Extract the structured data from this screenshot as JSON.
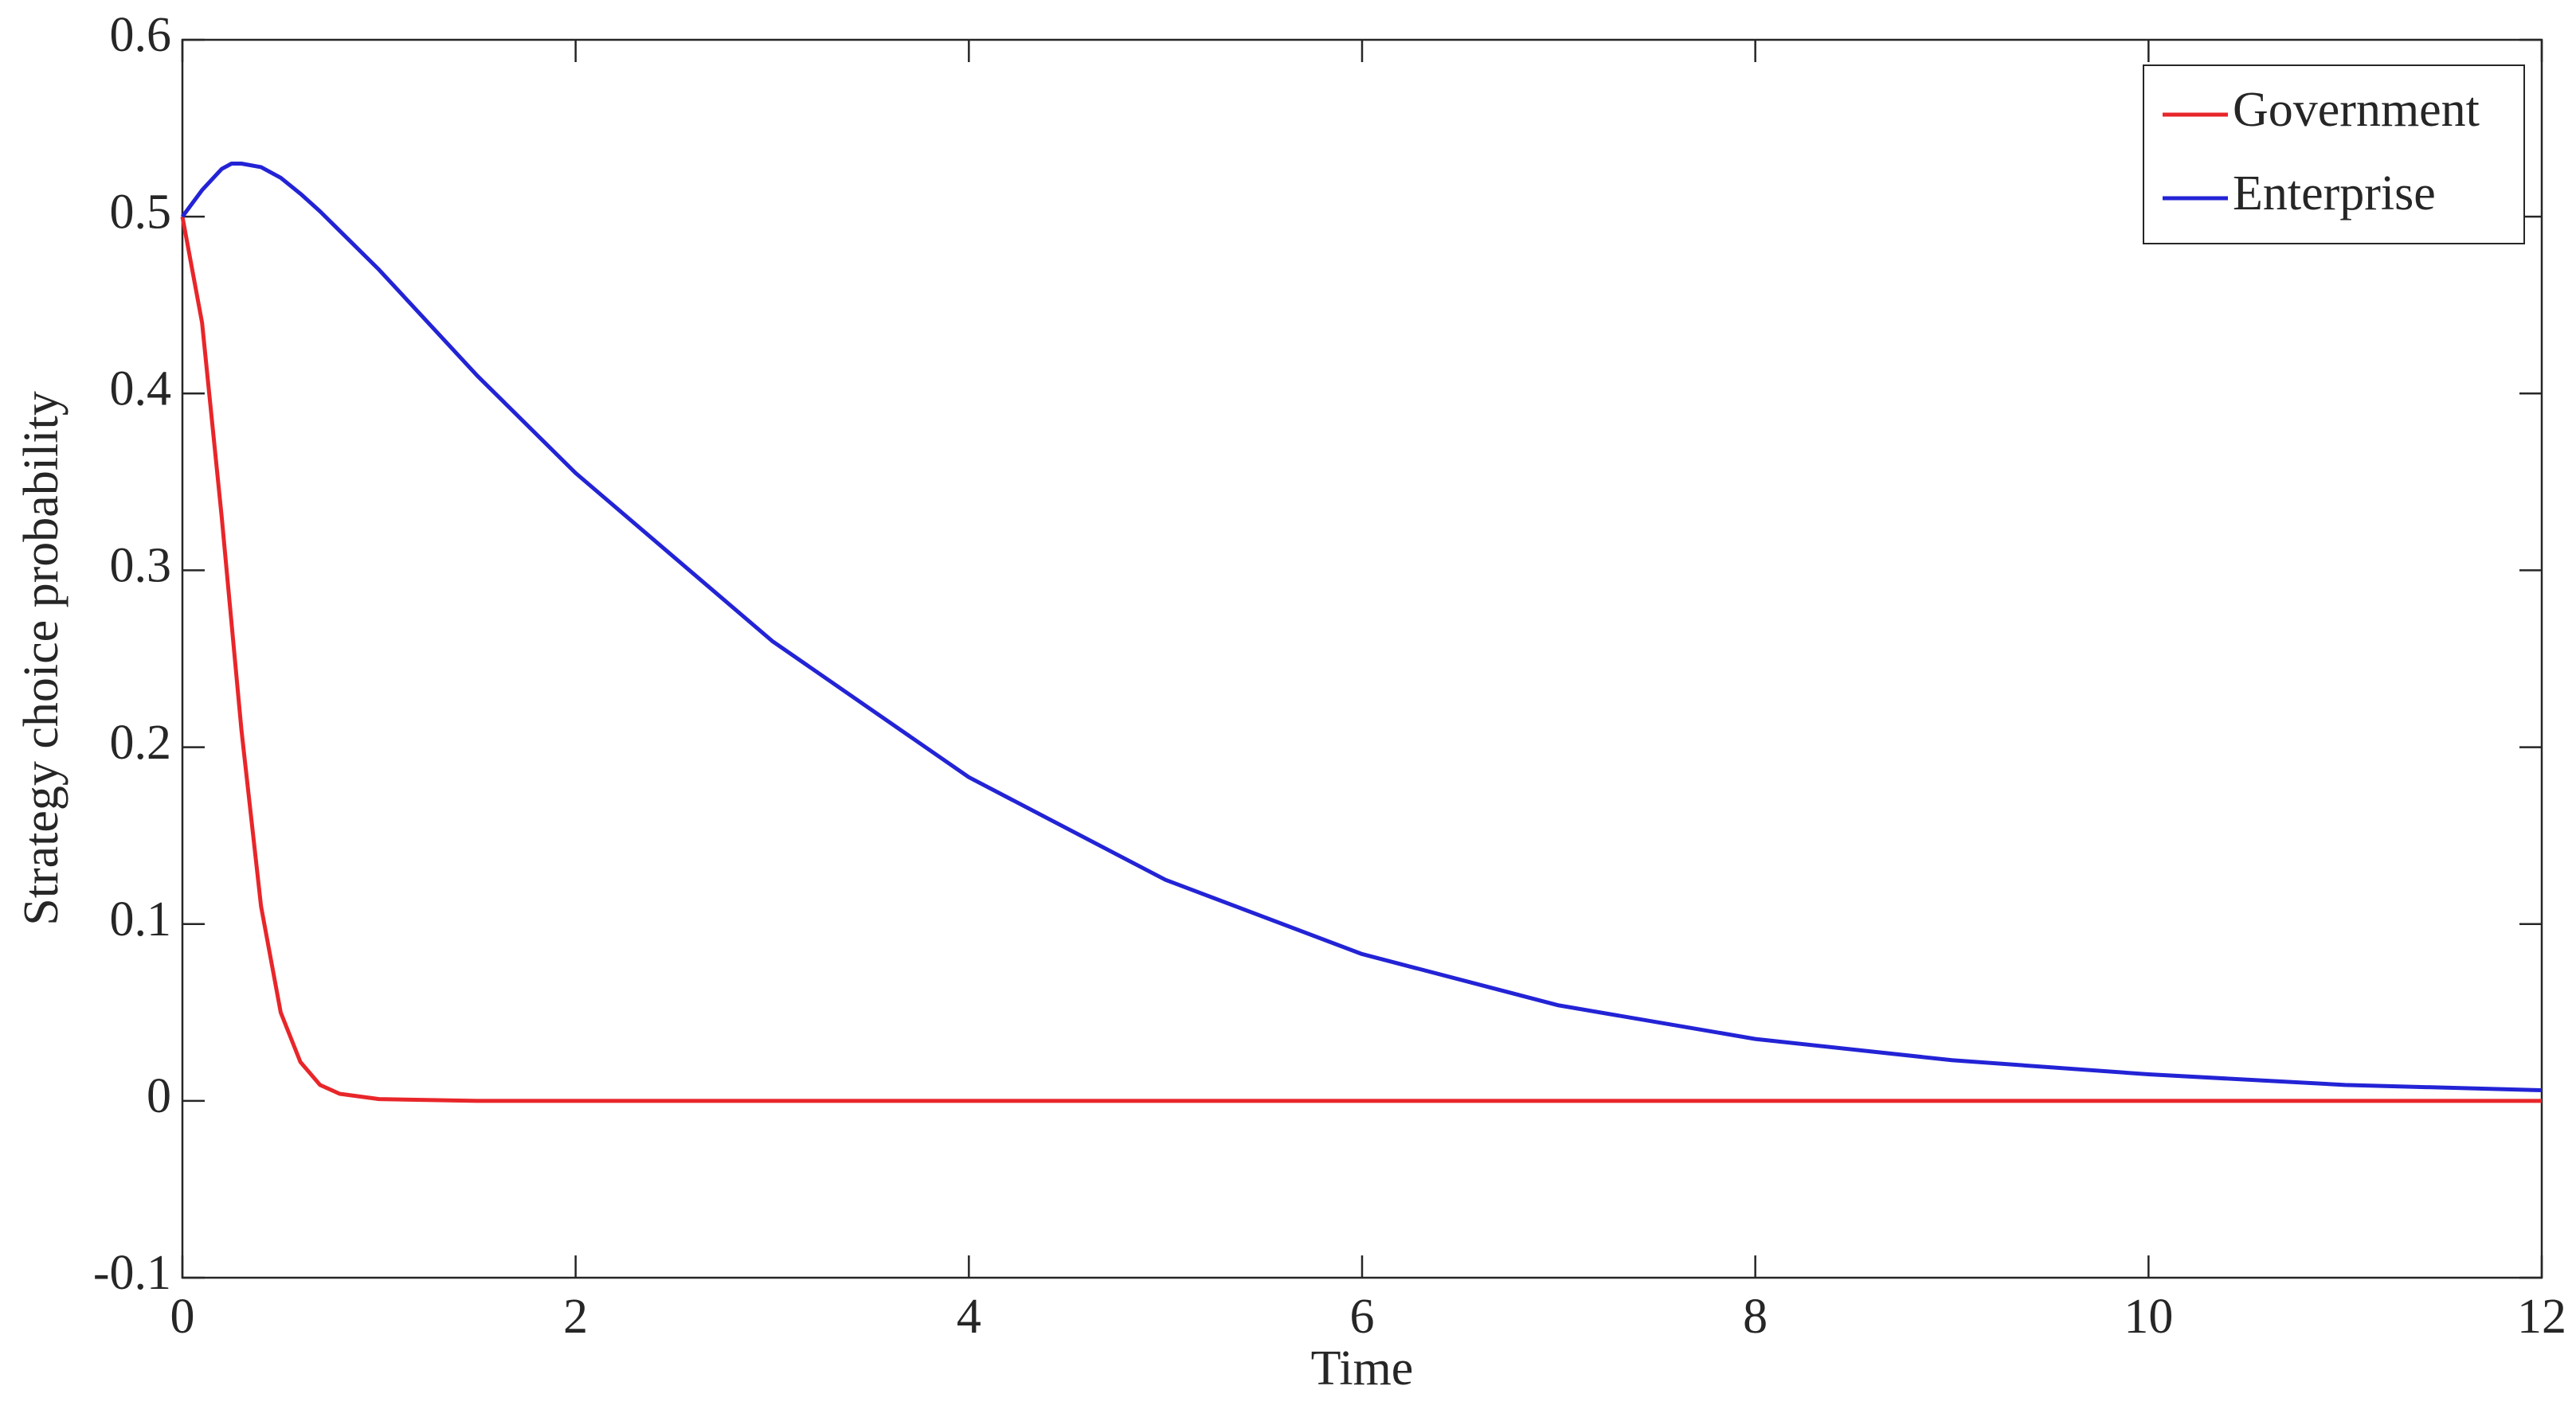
{
  "chart_data": {
    "type": "line",
    "x_label": "Time",
    "y_label": "Strategy choice probability",
    "x": [
      0,
      0.1,
      0.2,
      0.25,
      0.3,
      0.4,
      0.5,
      0.6,
      0.7,
      0.8,
      1,
      1.5,
      2,
      3,
      4,
      5,
      6,
      7,
      8,
      9,
      10,
      11,
      12
    ],
    "series": [
      {
        "name": "Government",
        "color": "#e8262a",
        "values": [
          0.5,
          0.44,
          0.33,
          0.27,
          0.21,
          0.11,
          0.05,
          0.022,
          0.009,
          0.004,
          0.001,
          0,
          0,
          0,
          0,
          0,
          0,
          0,
          0,
          0,
          0,
          0,
          0
        ]
      },
      {
        "name": "Enterprise",
        "color": "#2323d6",
        "values": [
          0.5,
          0.515,
          0.527,
          0.53,
          0.53,
          0.528,
          0.522,
          0.513,
          0.503,
          0.492,
          0.47,
          0.41,
          0.355,
          0.26,
          0.183,
          0.125,
          0.083,
          0.054,
          0.035,
          0.023,
          0.015,
          0.009,
          0.006
        ]
      }
    ],
    "xlim": [
      0,
      12
    ],
    "xticks": [
      0,
      2,
      4,
      6,
      8,
      10,
      12
    ],
    "ylim": [
      -0.1,
      0.6
    ],
    "yticks": [
      -0.1,
      0,
      0.1,
      0.2,
      0.3,
      0.4,
      0.5,
      0.6
    ],
    "legend": "top-right",
    "grid": false
  }
}
